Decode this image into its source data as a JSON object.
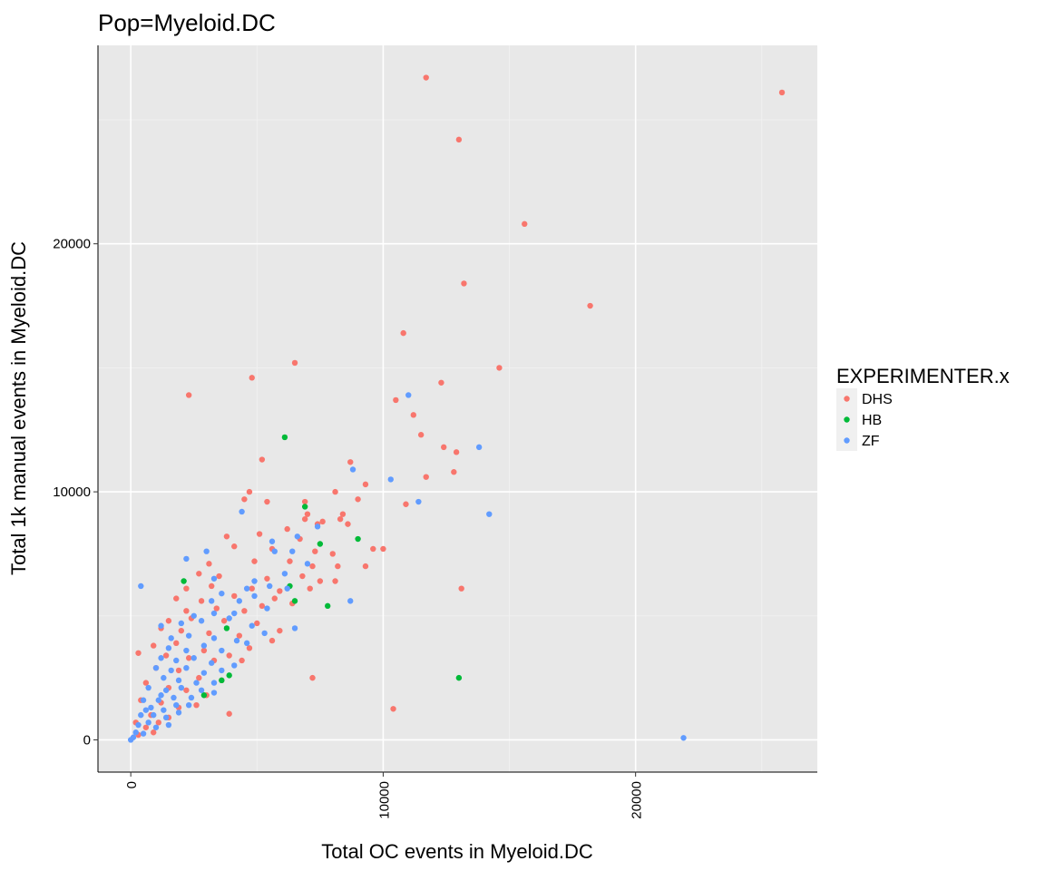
{
  "chart_data": {
    "type": "scatter",
    "title": "Pop=Myeloid.DC",
    "xlabel": "Total OC events in Myeloid.DC",
    "ylabel": "Total 1k manual events in Myeloid.DC",
    "xlim": [
      -1300,
      27200
    ],
    "ylim": [
      -1300,
      28000
    ],
    "x_ticks": [
      0,
      10000,
      20000
    ],
    "x_tick_labels": [
      "0",
      "10000",
      "20000"
    ],
    "y_ticks": [
      0,
      10000,
      20000
    ],
    "y_tick_labels": [
      "0",
      "10000",
      "20000"
    ],
    "grid": true,
    "panel_background": "#e8e8e8",
    "legend": {
      "title": "EXPERIMENTER.x",
      "position": "right",
      "entries": [
        {
          "label": "DHS",
          "color": "#f8766d"
        },
        {
          "label": "HB",
          "color": "#00ba38"
        },
        {
          "label": "ZF",
          "color": "#619cff"
        }
      ]
    },
    "series": [
      {
        "name": "DHS",
        "color": "#f8766d",
        "points": [
          [
            11700,
            26700
          ],
          [
            25800,
            26100
          ],
          [
            13000,
            24200
          ],
          [
            15600,
            20800
          ],
          [
            13200,
            18400
          ],
          [
            18200,
            17500
          ],
          [
            10800,
            16400
          ],
          [
            6500,
            15200
          ],
          [
            14600,
            15000
          ],
          [
            4800,
            14600
          ],
          [
            12300,
            14400
          ],
          [
            2300,
            13900
          ],
          [
            10500,
            13700
          ],
          [
            11200,
            13100
          ],
          [
            11500,
            12300
          ],
          [
            12400,
            11800
          ],
          [
            12900,
            11600
          ],
          [
            5200,
            11300
          ],
          [
            8700,
            11200
          ],
          [
            12800,
            10800
          ],
          [
            11700,
            10600
          ],
          [
            9300,
            10300
          ],
          [
            4700,
            10000
          ],
          [
            8100,
            10000
          ],
          [
            9000,
            9700
          ],
          [
            4500,
            9700
          ],
          [
            5400,
            9600
          ],
          [
            10900,
            9500
          ],
          [
            6900,
            9600
          ],
          [
            7000,
            9100
          ],
          [
            8400,
            9100
          ],
          [
            6900,
            8900
          ],
          [
            7400,
            8700
          ],
          [
            7600,
            8800
          ],
          [
            8300,
            8900
          ],
          [
            8600,
            8700
          ],
          [
            5100,
            8300
          ],
          [
            6200,
            8500
          ],
          [
            3800,
            8200
          ],
          [
            6700,
            8100
          ],
          [
            4100,
            7800
          ],
          [
            5600,
            7700
          ],
          [
            7300,
            7600
          ],
          [
            8000,
            7500
          ],
          [
            9600,
            7700
          ],
          [
            10000,
            7700
          ],
          [
            3100,
            7100
          ],
          [
            4900,
            7200
          ],
          [
            6300,
            7200
          ],
          [
            7200,
            7000
          ],
          [
            8200,
            7000
          ],
          [
            9300,
            7000
          ],
          [
            2700,
            6700
          ],
          [
            3500,
            6600
          ],
          [
            5400,
            6500
          ],
          [
            6800,
            6600
          ],
          [
            7500,
            6400
          ],
          [
            8100,
            6400
          ],
          [
            2200,
            6100
          ],
          [
            3200,
            6200
          ],
          [
            4800,
            6100
          ],
          [
            5900,
            6000
          ],
          [
            7100,
            6100
          ],
          [
            1800,
            5700
          ],
          [
            2800,
            5600
          ],
          [
            4100,
            5800
          ],
          [
            5700,
            5700
          ],
          [
            6400,
            5500
          ],
          [
            2200,
            5200
          ],
          [
            3400,
            5300
          ],
          [
            4500,
            5200
          ],
          [
            5200,
            5400
          ],
          [
            1500,
            4800
          ],
          [
            2400,
            4900
          ],
          [
            3700,
            4800
          ],
          [
            5000,
            4700
          ],
          [
            5900,
            4400
          ],
          [
            1200,
            4500
          ],
          [
            2000,
            4400
          ],
          [
            3100,
            4300
          ],
          [
            4300,
            4200
          ],
          [
            5600,
            4000
          ],
          [
            900,
            3800
          ],
          [
            1800,
            3900
          ],
          [
            2900,
            3600
          ],
          [
            3900,
            3400
          ],
          [
            4700,
            3700
          ],
          [
            300,
            3500
          ],
          [
            1400,
            3400
          ],
          [
            2300,
            3300
          ],
          [
            3300,
            3200
          ],
          [
            4400,
            3200
          ],
          [
            1000,
            2900
          ],
          [
            1900,
            2800
          ],
          [
            2700,
            2500
          ],
          [
            3600,
            2400
          ],
          [
            7200,
            2500
          ],
          [
            600,
            2300
          ],
          [
            1500,
            2100
          ],
          [
            2200,
            2000
          ],
          [
            3000,
            1800
          ],
          [
            400,
            1600
          ],
          [
            1200,
            1500
          ],
          [
            1900,
            1300
          ],
          [
            2600,
            1400
          ],
          [
            800,
            1000
          ],
          [
            1500,
            900
          ],
          [
            3900,
            1050
          ],
          [
            10400,
            1250
          ],
          [
            13100,
            6100
          ],
          [
            200,
            700
          ],
          [
            600,
            500
          ],
          [
            300,
            200
          ],
          [
            900,
            300
          ],
          [
            1100,
            700
          ]
        ]
      },
      {
        "name": "HB",
        "color": "#00ba38",
        "points": [
          [
            6100,
            12200
          ],
          [
            6900,
            9400
          ],
          [
            9000,
            8100
          ],
          [
            7500,
            7900
          ],
          [
            2100,
            6400
          ],
          [
            6500,
            5600
          ],
          [
            7800,
            5400
          ],
          [
            6300,
            6200
          ],
          [
            3800,
            4500
          ],
          [
            3600,
            2400
          ],
          [
            3900,
            2600
          ],
          [
            2900,
            1800
          ],
          [
            13000,
            2500
          ]
        ]
      },
      {
        "name": "ZF",
        "color": "#619cff",
        "points": [
          [
            11000,
            13900
          ],
          [
            13800,
            11800
          ],
          [
            8800,
            10900
          ],
          [
            10300,
            10500
          ],
          [
            11400,
            9600
          ],
          [
            14200,
            9100
          ],
          [
            4400,
            9200
          ],
          [
            6600,
            8200
          ],
          [
            3000,
            7600
          ],
          [
            2200,
            7300
          ],
          [
            5600,
            8000
          ],
          [
            5700,
            7600
          ],
          [
            6400,
            7600
          ],
          [
            7400,
            8600
          ],
          [
            7000,
            7100
          ],
          [
            8700,
            5600
          ],
          [
            400,
            6200
          ],
          [
            3300,
            6500
          ],
          [
            4900,
            6400
          ],
          [
            6100,
            6700
          ],
          [
            3600,
            5900
          ],
          [
            4600,
            6100
          ],
          [
            5500,
            6200
          ],
          [
            6200,
            6100
          ],
          [
            3200,
            5600
          ],
          [
            4300,
            5600
          ],
          [
            4900,
            5800
          ],
          [
            6500,
            4500
          ],
          [
            2500,
            5000
          ],
          [
            3300,
            5100
          ],
          [
            4100,
            5100
          ],
          [
            5400,
            5300
          ],
          [
            1200,
            4600
          ],
          [
            2000,
            4700
          ],
          [
            2800,
            4800
          ],
          [
            3900,
            4900
          ],
          [
            4800,
            4600
          ],
          [
            1600,
            4100
          ],
          [
            2300,
            4200
          ],
          [
            3300,
            4100
          ],
          [
            4200,
            4000
          ],
          [
            5300,
            4300
          ],
          [
            1500,
            3700
          ],
          [
            2200,
            3600
          ],
          [
            2900,
            3800
          ],
          [
            3600,
            3600
          ],
          [
            4600,
            3900
          ],
          [
            1200,
            3300
          ],
          [
            1800,
            3200
          ],
          [
            2500,
            3300
          ],
          [
            3200,
            3100
          ],
          [
            4100,
            3000
          ],
          [
            1000,
            2900
          ],
          [
            1600,
            2800
          ],
          [
            2200,
            2900
          ],
          [
            2900,
            2700
          ],
          [
            3600,
            2800
          ],
          [
            1300,
            2500
          ],
          [
            1900,
            2400
          ],
          [
            2600,
            2300
          ],
          [
            3300,
            2300
          ],
          [
            700,
            2100
          ],
          [
            1400,
            2000
          ],
          [
            2000,
            2100
          ],
          [
            2800,
            2000
          ],
          [
            3300,
            1900
          ],
          [
            500,
            1600
          ],
          [
            1100,
            1600
          ],
          [
            1700,
            1700
          ],
          [
            2400,
            1700
          ],
          [
            800,
            1300
          ],
          [
            1300,
            1200
          ],
          [
            1800,
            1400
          ],
          [
            2300,
            1400
          ],
          [
            400,
            1000
          ],
          [
            900,
            1000
          ],
          [
            1400,
            900
          ],
          [
            1900,
            1100
          ],
          [
            300,
            600
          ],
          [
            700,
            700
          ],
          [
            1000,
            500
          ],
          [
            1500,
            600
          ],
          [
            200,
            300
          ],
          [
            500,
            250
          ],
          [
            100,
            100
          ],
          [
            0,
            0
          ],
          [
            600,
            1200
          ],
          [
            1200,
            1800
          ],
          [
            21900,
            80
          ]
        ]
      }
    ]
  }
}
